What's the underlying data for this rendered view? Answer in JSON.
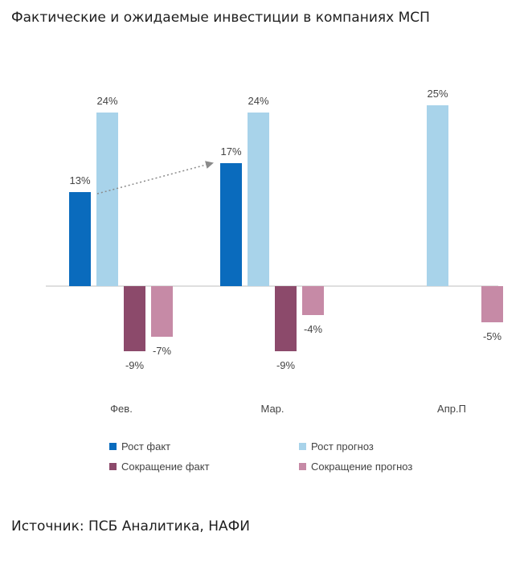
{
  "title": "Фактические и ожидаемые инвестиции в компаниях МСП",
  "source": "Источник: ПСБ Аналитика, НАФИ",
  "colors": {
    "growth_fact": "#0a6bbd",
    "growth_forecast": "#a8d3ea",
    "decline_fact": "#8c4a6b",
    "decline_forecast": "#c68aa6",
    "axis": "#bfbfbf",
    "arrow": "#8a8a8a"
  },
  "chart_data": {
    "type": "bar",
    "categories": [
      "Фев.",
      "Мар.",
      "Апр.П"
    ],
    "series": [
      {
        "name": "Рост факт",
        "values": [
          13,
          17,
          null
        ],
        "labels": [
          "13%",
          "17%",
          ""
        ]
      },
      {
        "name": "Рост прогноз",
        "values": [
          24,
          24,
          25
        ],
        "labels": [
          "24%",
          "24%",
          "25%"
        ]
      },
      {
        "name": "Сокращение факт",
        "values": [
          -9,
          -9,
          null
        ],
        "labels": [
          "-9%",
          "-9%",
          ""
        ]
      },
      {
        "name": "Сокращение прогноз",
        "values": [
          -7,
          -4,
          -5
        ],
        "labels": [
          "-7%",
          "-4%",
          "-5%"
        ]
      }
    ],
    "annotations": [
      {
        "type": "arrow",
        "from": {
          "category": "Фев.",
          "series": "Рост факт",
          "value": 13
        },
        "to": {
          "category": "Мар.",
          "series": "Рост факт",
          "value": 17
        }
      }
    ],
    "ylim": [
      -10,
      26
    ],
    "legend_position": "bottom",
    "grid": false
  }
}
